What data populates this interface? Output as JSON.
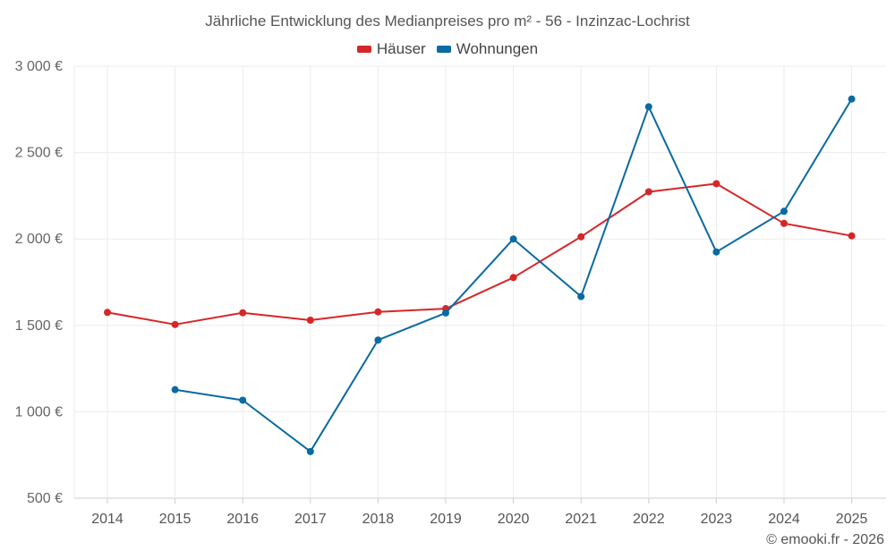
{
  "chart_data": {
    "type": "line",
    "title": "Jährliche Entwicklung des Medianpreises pro m² - 56 - Inzinzac-Lochrist",
    "categories": [
      "2014",
      "2015",
      "2016",
      "2017",
      "2018",
      "2019",
      "2020",
      "2021",
      "2022",
      "2023",
      "2024",
      "2025"
    ],
    "series": [
      {
        "name": "Häuser",
        "color": "#d62728",
        "values": [
          1575,
          1505,
          1573,
          1530,
          1578,
          1597,
          1777,
          2013,
          2273,
          2320,
          2090,
          2018
        ]
      },
      {
        "name": "Wohnungen",
        "color": "#0a6aa1",
        "values": [
          null,
          1128,
          1067,
          770,
          1415,
          1572,
          2000,
          1667,
          2765,
          1925,
          2160,
          2810
        ]
      }
    ],
    "ylim": [
      500,
      3000
    ],
    "yticks": [
      500,
      1000,
      1500,
      2000,
      2500,
      3000
    ],
    "ytick_labels": [
      "500 €",
      "1 000 €",
      "1 500 €",
      "2 000 €",
      "2 500 €",
      "3 000 €"
    ],
    "xlabel": "",
    "ylabel": "",
    "grid": true,
    "legend_position": "top-center"
  },
  "footer": {
    "copyright": "© emooki.fr - 2026"
  }
}
